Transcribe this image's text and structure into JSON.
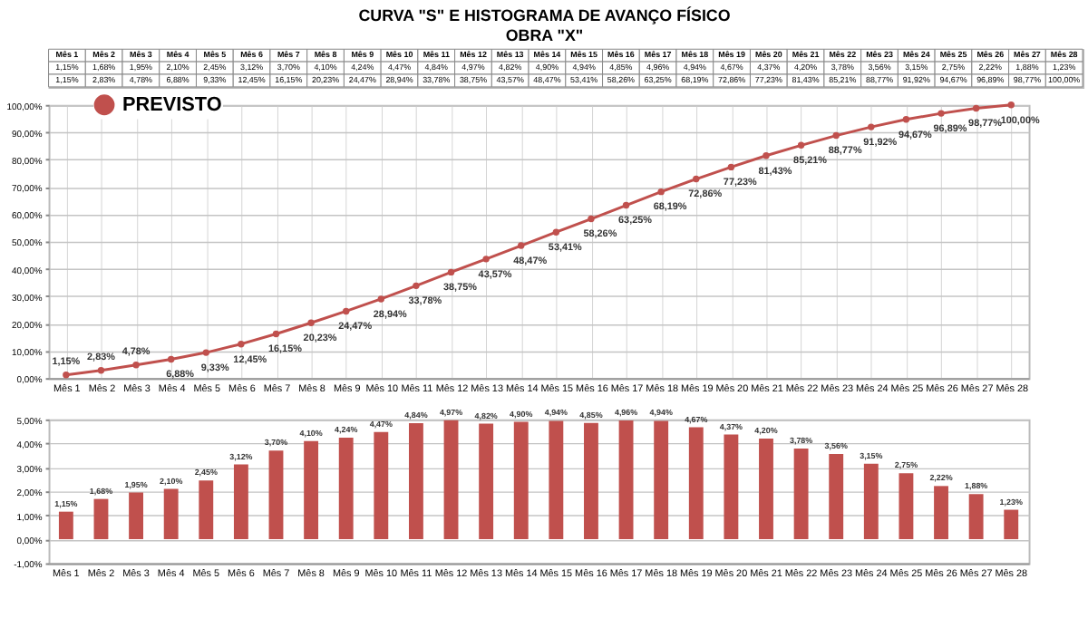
{
  "chart_data": [
    {
      "type": "line",
      "title": [
        "CURVA \"S\" E HISTOGRAMA DE AVANÇO FÍSICO",
        "OBRA \"X\""
      ],
      "categories": [
        "Mês 1",
        "Mês 2",
        "Mês 3",
        "Mês 4",
        "Mês 5",
        "Mês 6",
        "Mês 7",
        "Mês 8",
        "Mês 9",
        "Mês 10",
        "Mês 11",
        "Mês 12",
        "Mês 13",
        "Mês 14",
        "Mês 15",
        "Mês 16",
        "Mês 17",
        "Mês 18",
        "Mês 19",
        "Mês 20",
        "Mês 21",
        "Mês 22",
        "Mês 23",
        "Mês 24",
        "Mês 25",
        "Mês 26",
        "Mês 27",
        "Mês 28"
      ],
      "series": [
        {
          "name": "PREVISTO",
          "color": "#c0504d",
          "values": [
            1.15,
            2.83,
            4.78,
            6.88,
            9.33,
            12.45,
            16.15,
            20.23,
            24.47,
            28.94,
            33.78,
            38.75,
            43.57,
            48.47,
            53.41,
            58.26,
            63.25,
            68.19,
            72.86,
            77.23,
            81.43,
            85.21,
            88.77,
            91.92,
            94.67,
            96.89,
            98.77,
            100.0
          ],
          "value_labels": [
            "1,15%",
            "2,83%",
            "4,78%",
            "6,88%",
            "9,33%",
            "12,45%",
            "16,15%",
            "20,23%",
            "24,47%",
            "28,94%",
            "33,78%",
            "38,75%",
            "43,57%",
            "48,47%",
            "53,41%",
            "58,26%",
            "63,25%",
            "68,19%",
            "72,86%",
            "77,23%",
            "81,43%",
            "85,21%",
            "88,77%",
            "91,92%",
            "94,67%",
            "96,89%",
            "98,77%",
            "100,00%"
          ]
        }
      ],
      "ylim": [
        0,
        100
      ],
      "yticks": [
        {
          "value": 0,
          "label": "0,00%"
        },
        {
          "value": 10,
          "label": "10,00%"
        },
        {
          "value": 20,
          "label": "20,00%"
        },
        {
          "value": 30,
          "label": "30,00%"
        },
        {
          "value": 40,
          "label": "40,00%"
        },
        {
          "value": 50,
          "label": "50,00%"
        },
        {
          "value": 60,
          "label": "60,00%"
        },
        {
          "value": 70,
          "label": "70,00%"
        },
        {
          "value": 80,
          "label": "80,00%"
        },
        {
          "value": 90,
          "label": "90,00%"
        },
        {
          "value": 100,
          "label": "100,00%"
        }
      ],
      "grid": true,
      "legend": "top left",
      "marker": "circle",
      "line_style": "solid"
    },
    {
      "type": "bar",
      "categories": [
        "Mês 1",
        "Mês 2",
        "Mês 3",
        "Mês 4",
        "Mês 5",
        "Mês 6",
        "Mês 7",
        "Mês 8",
        "Mês 9",
        "Mês 10",
        "Mês 11",
        "Mês 12",
        "Mês 13",
        "Mês 14",
        "Mês 15",
        "Mês 16",
        "Mês 17",
        "Mês 18",
        "Mês 19",
        "Mês 20",
        "Mês 21",
        "Mês 22",
        "Mês 23",
        "Mês 24",
        "Mês 25",
        "Mês 26",
        "Mês 27",
        "Mês 28"
      ],
      "series": [
        {
          "name": "PREVISTO",
          "color": "#c0504d",
          "values": [
            1.15,
            1.68,
            1.95,
            2.1,
            2.45,
            3.12,
            3.7,
            4.1,
            4.24,
            4.47,
            4.84,
            4.97,
            4.82,
            4.9,
            4.94,
            4.85,
            4.96,
            4.94,
            4.67,
            4.37,
            4.2,
            3.78,
            3.56,
            3.15,
            2.75,
            2.22,
            1.88,
            1.23
          ],
          "value_labels": [
            "1,15%",
            "1,68%",
            "1,95%",
            "2,10%",
            "2,45%",
            "3,12%",
            "3,70%",
            "4,10%",
            "4,24%",
            "4,47%",
            "4,84%",
            "4,97%",
            "4,82%",
            "4,90%",
            "4,94%",
            "4,85%",
            "4,96%",
            "4,94%",
            "4,67%",
            "4,37%",
            "4,20%",
            "3,78%",
            "3,56%",
            "3,15%",
            "2,75%",
            "2,22%",
            "1,88%",
            "1,23%"
          ]
        }
      ],
      "ylim": [
        -1,
        5
      ],
      "yticks": [
        {
          "value": -1,
          "label": "-1,00%"
        },
        {
          "value": 0,
          "label": "0,00%"
        },
        {
          "value": 1,
          "label": "1,00%"
        },
        {
          "value": 2,
          "label": "2,00%"
        },
        {
          "value": 3,
          "label": "3,00%"
        },
        {
          "value": 4,
          "label": "4,00%"
        },
        {
          "value": 5,
          "label": "5,00%"
        }
      ],
      "grid": "y",
      "legend": "top left"
    }
  ]
}
